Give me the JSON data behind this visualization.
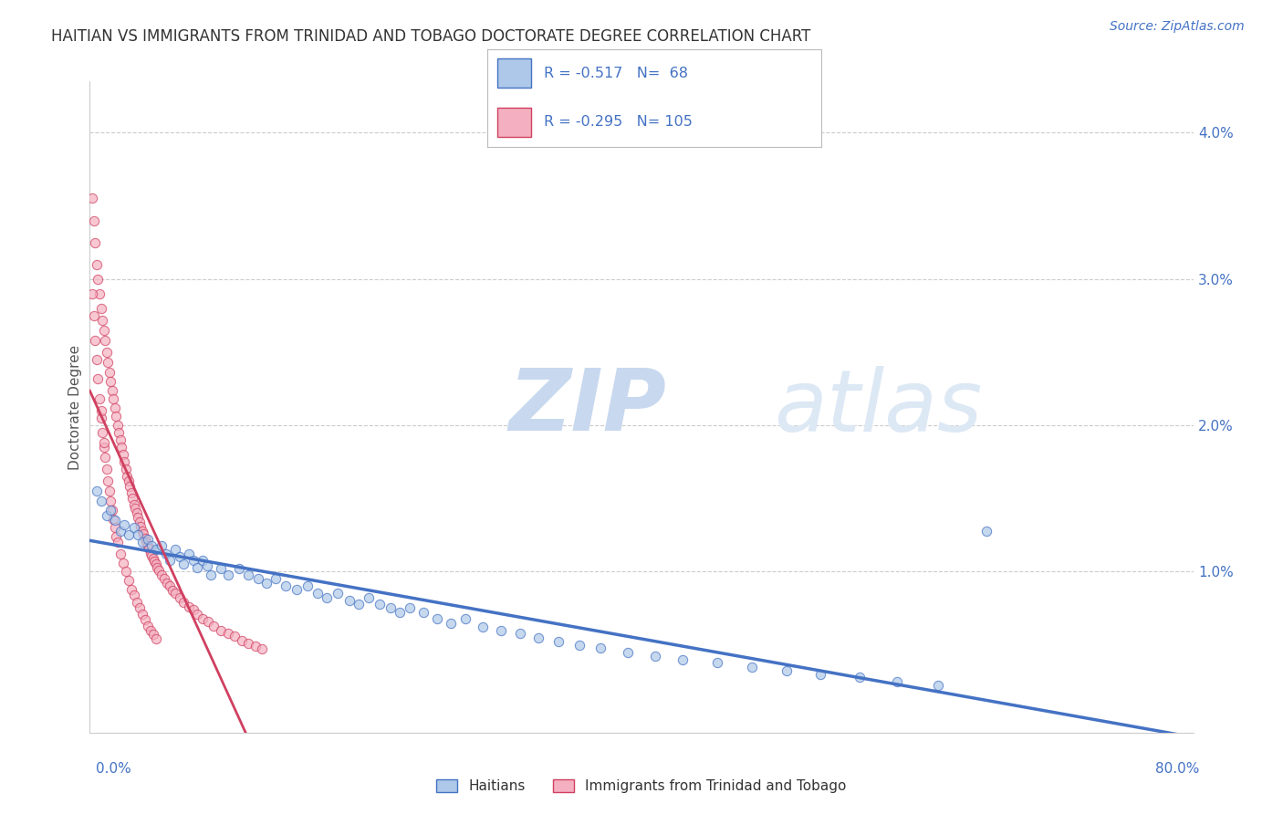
{
  "title": "HAITIAN VS IMMIGRANTS FROM TRINIDAD AND TOBAGO DOCTORATE DEGREE CORRELATION CHART",
  "source_text": "Source: ZipAtlas.com",
  "ylabel": "Doctorate Degree",
  "ylabel_right_ticks": [
    "1.0%",
    "2.0%",
    "3.0%",
    "4.0%"
  ],
  "ylabel_right_vals": [
    0.01,
    0.02,
    0.03,
    0.04
  ],
  "xlim": [
    0.0,
    0.8
  ],
  "ylim": [
    -0.001,
    0.0435
  ],
  "R1": -0.517,
  "N1": 68,
  "R2": -0.295,
  "N2": 105,
  "color_blue": "#adc8e8",
  "color_pink": "#f4b0c0",
  "color_blue_line": "#4472c4",
  "color_pink_line": "#d04060",
  "watermark_color": "#dde8f5",
  "haitians_x": [
    0.005,
    0.008,
    0.012,
    0.015,
    0.018,
    0.022,
    0.025,
    0.028,
    0.032,
    0.035,
    0.038,
    0.042,
    0.045,
    0.048,
    0.052,
    0.055,
    0.058,
    0.062,
    0.065,
    0.068,
    0.072,
    0.075,
    0.078,
    0.082,
    0.085,
    0.088,
    0.095,
    0.1,
    0.108,
    0.115,
    0.122,
    0.128,
    0.135,
    0.142,
    0.15,
    0.158,
    0.165,
    0.172,
    0.18,
    0.188,
    0.195,
    0.202,
    0.21,
    0.218,
    0.225,
    0.232,
    0.242,
    0.252,
    0.262,
    0.272,
    0.285,
    0.298,
    0.312,
    0.325,
    0.34,
    0.355,
    0.37,
    0.39,
    0.41,
    0.43,
    0.455,
    0.48,
    0.505,
    0.53,
    0.558,
    0.585,
    0.615,
    0.65
  ],
  "haitians_y": [
    0.0155,
    0.0148,
    0.0138,
    0.0142,
    0.0135,
    0.0128,
    0.0132,
    0.0125,
    0.013,
    0.0125,
    0.012,
    0.0122,
    0.0118,
    0.0115,
    0.0118,
    0.0112,
    0.0108,
    0.0115,
    0.011,
    0.0105,
    0.0112,
    0.0108,
    0.0103,
    0.0108,
    0.0104,
    0.0098,
    0.0102,
    0.0098,
    0.0102,
    0.0098,
    0.0095,
    0.0092,
    0.0095,
    0.009,
    0.0088,
    0.009,
    0.0085,
    0.0082,
    0.0085,
    0.008,
    0.0078,
    0.0082,
    0.0078,
    0.0075,
    0.0072,
    0.0075,
    0.0072,
    0.0068,
    0.0065,
    0.0068,
    0.0062,
    0.006,
    0.0058,
    0.0055,
    0.0052,
    0.005,
    0.0048,
    0.0045,
    0.0042,
    0.004,
    0.0038,
    0.0035,
    0.0032,
    0.003,
    0.0028,
    0.0025,
    0.0022,
    0.0128
  ],
  "trinidad_x": [
    0.002,
    0.003,
    0.004,
    0.005,
    0.006,
    0.007,
    0.008,
    0.009,
    0.01,
    0.011,
    0.012,
    0.013,
    0.014,
    0.015,
    0.016,
    0.017,
    0.018,
    0.019,
    0.02,
    0.021,
    0.022,
    0.023,
    0.024,
    0.025,
    0.026,
    0.027,
    0.028,
    0.029,
    0.03,
    0.031,
    0.032,
    0.033,
    0.034,
    0.035,
    0.036,
    0.037,
    0.038,
    0.039,
    0.04,
    0.041,
    0.042,
    0.043,
    0.044,
    0.045,
    0.046,
    0.047,
    0.048,
    0.049,
    0.05,
    0.052,
    0.054,
    0.056,
    0.058,
    0.06,
    0.062,
    0.065,
    0.068,
    0.072,
    0.075,
    0.078,
    0.082,
    0.086,
    0.09,
    0.095,
    0.1,
    0.105,
    0.11,
    0.115,
    0.12,
    0.125,
    0.002,
    0.003,
    0.004,
    0.005,
    0.006,
    0.007,
    0.008,
    0.008,
    0.009,
    0.01,
    0.01,
    0.011,
    0.012,
    0.013,
    0.014,
    0.015,
    0.016,
    0.017,
    0.018,
    0.019,
    0.02,
    0.022,
    0.024,
    0.026,
    0.028,
    0.03,
    0.032,
    0.034,
    0.036,
    0.038,
    0.04,
    0.042,
    0.044,
    0.046,
    0.048
  ],
  "trinidad_y": [
    0.0355,
    0.034,
    0.0325,
    0.031,
    0.03,
    0.029,
    0.028,
    0.0272,
    0.0265,
    0.0258,
    0.025,
    0.0243,
    0.0236,
    0.023,
    0.0224,
    0.0218,
    0.0212,
    0.0206,
    0.02,
    0.0195,
    0.019,
    0.0185,
    0.018,
    0.0175,
    0.017,
    0.0165,
    0.0162,
    0.0158,
    0.0154,
    0.015,
    0.0146,
    0.0143,
    0.014,
    0.0137,
    0.0134,
    0.0131,
    0.0128,
    0.0126,
    0.0123,
    0.012,
    0.0118,
    0.0116,
    0.0113,
    0.0111,
    0.0109,
    0.0107,
    0.0105,
    0.0103,
    0.0101,
    0.0098,
    0.0095,
    0.0092,
    0.009,
    0.0087,
    0.0085,
    0.0082,
    0.0079,
    0.0076,
    0.0074,
    0.0071,
    0.0068,
    0.0066,
    0.0063,
    0.006,
    0.0058,
    0.0056,
    0.0053,
    0.0051,
    0.0049,
    0.0047,
    0.029,
    0.0275,
    0.0258,
    0.0245,
    0.0232,
    0.0218,
    0.0205,
    0.021,
    0.0195,
    0.0185,
    0.0188,
    0.0178,
    0.017,
    0.0162,
    0.0155,
    0.0148,
    0.0142,
    0.0136,
    0.013,
    0.0124,
    0.012,
    0.0112,
    0.0106,
    0.01,
    0.0094,
    0.0088,
    0.0084,
    0.0079,
    0.0075,
    0.0071,
    0.0067,
    0.0063,
    0.006,
    0.0057,
    0.0054
  ]
}
